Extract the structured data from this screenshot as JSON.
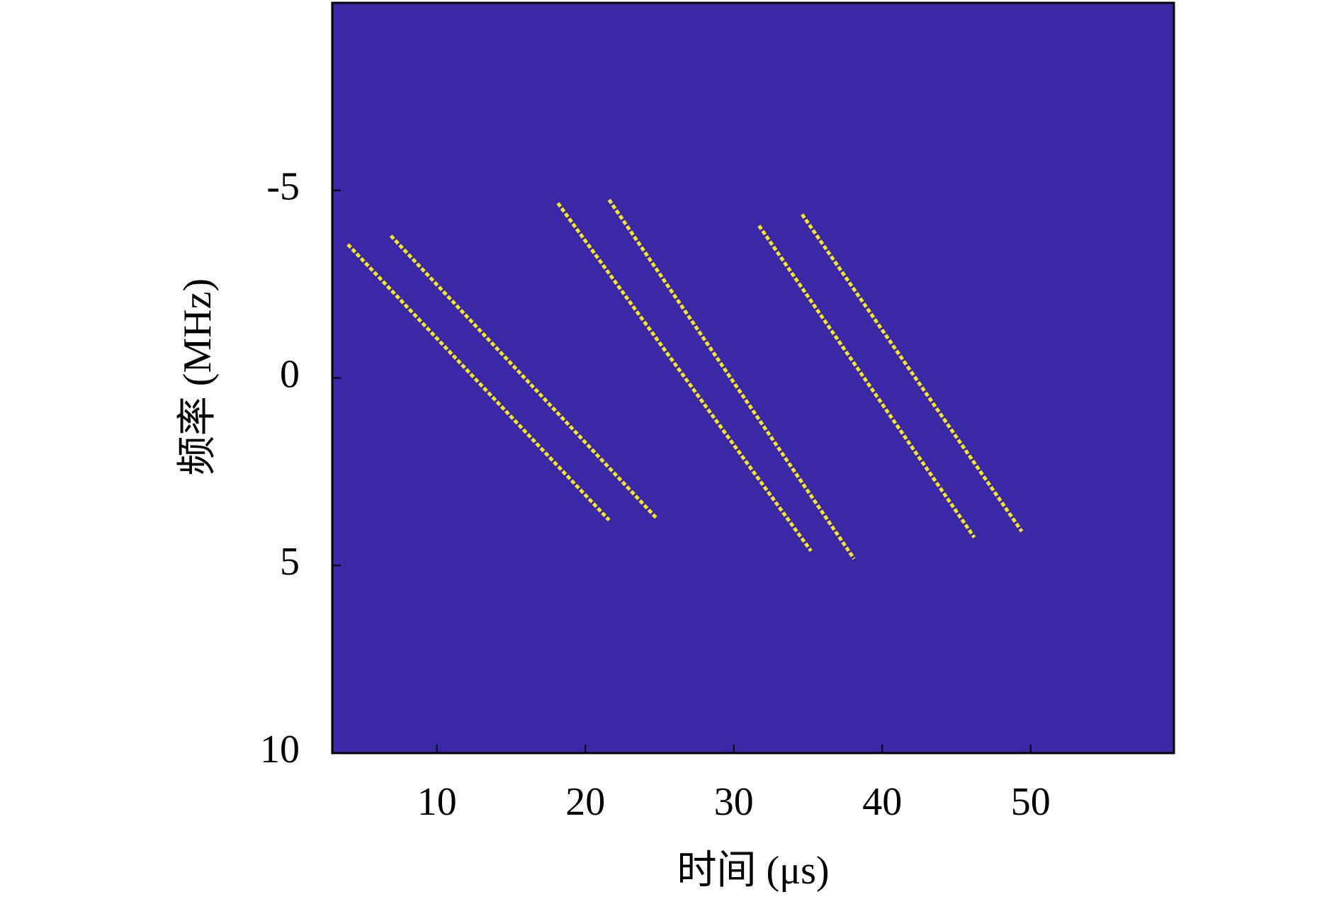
{
  "chart_data": {
    "type": "line",
    "x_label": "时间 (μs)",
    "y_label": "频率 (MHz)",
    "background": "#3b28a6",
    "series": [
      {
        "color": "#f3e81e",
        "x": [
          4.0,
          21.6
        ],
        "values": [
          -3.56,
          3.79
        ]
      },
      {
        "color": "#f3e81e",
        "x": [
          6.9,
          24.8
        ],
        "values": [
          -3.79,
          3.74
        ]
      },
      {
        "color": "#f3e81e",
        "x": [
          18.15,
          35.2
        ],
        "values": [
          -4.66,
          4.61
        ]
      },
      {
        "color": "#f3e81e",
        "x": [
          21.6,
          38.1
        ],
        "values": [
          -4.75,
          4.82
        ]
      },
      {
        "color": "#f3e81e",
        "x": [
          31.7,
          46.2
        ],
        "values": [
          -4.06,
          4.25
        ]
      },
      {
        "color": "#f3e81e",
        "x": [
          34.6,
          49.4
        ],
        "values": [
          -4.36,
          4.09
        ]
      }
    ],
    "xlim": [
      2.95,
      59.65
    ],
    "xticks": [
      10,
      20,
      30,
      40,
      50
    ],
    "ylim": [
      -10,
      10
    ],
    "yticks": [
      -5,
      0,
      5,
      10
    ],
    "y_inverted": true
  }
}
